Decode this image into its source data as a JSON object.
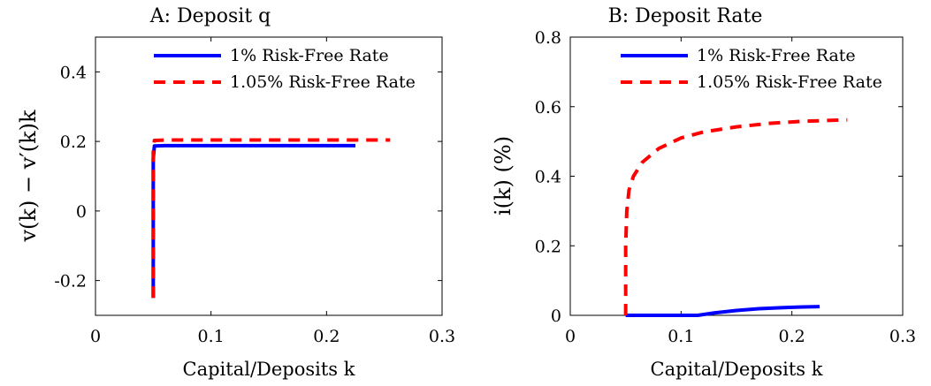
{
  "chart_data": [
    {
      "type": "line",
      "title": "A: Deposit q",
      "xlabel": "Capital/Deposits k",
      "ylabel": "v(k) − v′(k)k",
      "xlim": [
        0,
        0.3
      ],
      "ylim": [
        -0.3,
        0.5
      ],
      "xticks": [
        0,
        0.1,
        0.2,
        0.3
      ],
      "xtick_labels": [
        "0",
        "0.1",
        "0.2",
        "0.3"
      ],
      "yticks": [
        -0.2,
        0,
        0.2,
        0.4
      ],
      "ytick_labels": [
        "-0.2",
        "0",
        "0.2",
        "0.4"
      ],
      "grid": false,
      "legend_position": "top-right",
      "series": [
        {
          "name": "1% Risk-Free Rate",
          "color": "#0000ff",
          "dash": "solid",
          "points": [
            [
              0.05,
              -0.25
            ],
            [
              0.05,
              0.15
            ],
            [
              0.051,
              0.187
            ],
            [
              0.06,
              0.188
            ],
            [
              0.1,
              0.188
            ],
            [
              0.15,
              0.188
            ],
            [
              0.2,
              0.188
            ],
            [
              0.225,
              0.188
            ]
          ]
        },
        {
          "name": "1.05% Risk-Free Rate",
          "color": "#ff0000",
          "dash": "dashed",
          "points": [
            [
              0.05,
              -0.25
            ],
            [
              0.05,
              0.17
            ],
            [
              0.051,
              0.203
            ],
            [
              0.06,
              0.204
            ],
            [
              0.1,
              0.204
            ],
            [
              0.15,
              0.204
            ],
            [
              0.2,
              0.204
            ],
            [
              0.255,
              0.204
            ]
          ]
        }
      ]
    },
    {
      "type": "line",
      "title": "B: Deposit Rate",
      "xlabel": "Capital/Deposits k",
      "ylabel": "i(k) (%)",
      "xlim": [
        0,
        0.3
      ],
      "ylim": [
        0,
        0.8
      ],
      "xticks": [
        0,
        0.1,
        0.2,
        0.3
      ],
      "xtick_labels": [
        "0",
        "0.1",
        "0.2",
        "0.3"
      ],
      "yticks": [
        0,
        0.2,
        0.4,
        0.6,
        0.8
      ],
      "ytick_labels": [
        "0",
        "0.2",
        "0.4",
        "0.6",
        "0.8"
      ],
      "grid": false,
      "legend_position": "top-right",
      "series": [
        {
          "name": "1% Risk-Free Rate",
          "color": "#0000ff",
          "dash": "solid",
          "points": [
            [
              0.05,
              0
            ],
            [
              0.08,
              0
            ],
            [
              0.1,
              0
            ],
            [
              0.115,
              0.0
            ],
            [
              0.13,
              0.007
            ],
            [
              0.15,
              0.014
            ],
            [
              0.17,
              0.019
            ],
            [
              0.19,
              0.022
            ],
            [
              0.21,
              0.024
            ],
            [
              0.225,
              0.025
            ]
          ]
        },
        {
          "name": "1.05% Risk-Free Rate",
          "color": "#ff0000",
          "dash": "dashed",
          "points": [
            [
              0.05,
              0
            ],
            [
              0.05,
              0.2
            ],
            [
              0.051,
              0.3
            ],
            [
              0.053,
              0.36
            ],
            [
              0.057,
              0.4
            ],
            [
              0.065,
              0.44
            ],
            [
              0.08,
              0.48
            ],
            [
              0.1,
              0.51
            ],
            [
              0.12,
              0.527
            ],
            [
              0.15,
              0.542
            ],
            [
              0.18,
              0.552
            ],
            [
              0.21,
              0.558
            ],
            [
              0.25,
              0.562
            ]
          ]
        }
      ]
    }
  ]
}
